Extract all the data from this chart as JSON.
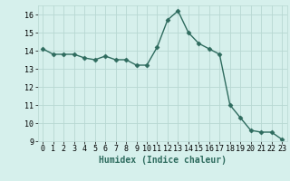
{
  "x": [
    0,
    1,
    2,
    3,
    4,
    5,
    6,
    7,
    8,
    9,
    10,
    11,
    12,
    13,
    14,
    15,
    16,
    17,
    18,
    19,
    20,
    21,
    22,
    23
  ],
  "y": [
    14.1,
    13.8,
    13.8,
    13.8,
    13.6,
    13.5,
    13.7,
    13.5,
    13.5,
    13.2,
    13.2,
    14.2,
    15.7,
    16.2,
    15.0,
    14.4,
    14.1,
    13.8,
    11.0,
    10.3,
    9.6,
    9.5,
    9.5,
    9.1
  ],
  "xlabel": "Humidex (Indice chaleur)",
  "xlim": [
    -0.5,
    23.5
  ],
  "ylim": [
    9,
    16.5
  ],
  "yticks": [
    9,
    10,
    11,
    12,
    13,
    14,
    15,
    16
  ],
  "xtick_labels": [
    "0",
    "1",
    "2",
    "3",
    "4",
    "5",
    "6",
    "7",
    "8",
    "9",
    "10",
    "11",
    "12",
    "13",
    "14",
    "15",
    "16",
    "17",
    "18",
    "19",
    "20",
    "21",
    "22",
    "23"
  ],
  "line_color": "#2e6b5e",
  "marker": "D",
  "marker_size": 2.5,
  "bg_color": "#d6f0ec",
  "grid_color": "#b8d8d2",
  "xlabel_fontsize": 7,
  "tick_fontsize": 6
}
